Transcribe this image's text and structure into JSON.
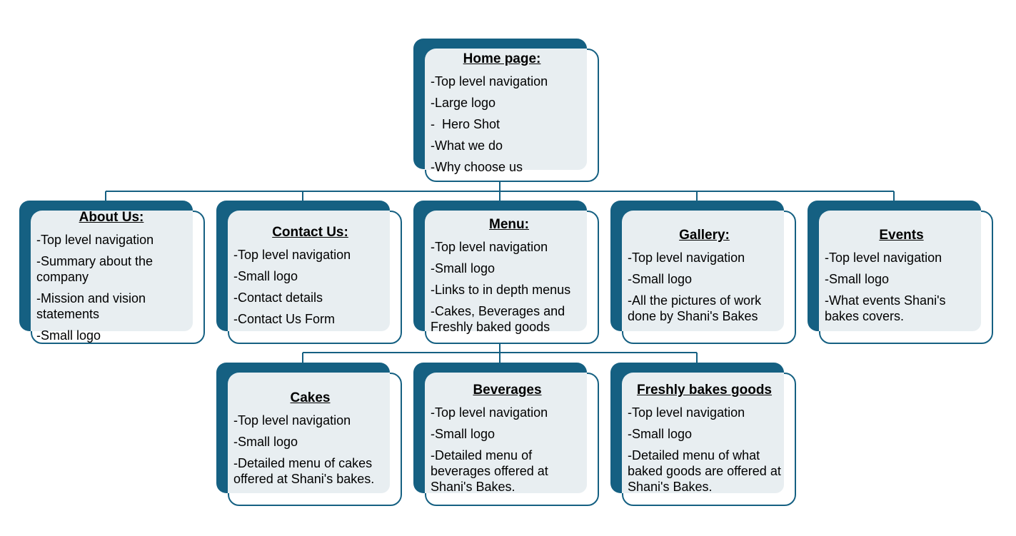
{
  "colors": {
    "primary": "#156082",
    "tint": "#e8eef1",
    "text": "#000000"
  },
  "nodes": [
    {
      "id": "home",
      "title": "Home page:",
      "items": [
        "-Top level navigation",
        "-Large logo",
        "-  Hero Shot",
        "-What we do",
        "-Why choose us"
      ]
    },
    {
      "id": "about",
      "title": "About Us:",
      "items": [
        "-Top level navigation",
        "-Summary about the company",
        "-Mission and vision statements",
        "-Small logo"
      ]
    },
    {
      "id": "contact",
      "title": "Contact Us:",
      "items": [
        "-Top level navigation",
        "-Small logo",
        "-Contact details",
        "-Contact Us Form"
      ]
    },
    {
      "id": "menu",
      "title": "Menu:",
      "items": [
        "-Top level navigation",
        "-Small logo",
        "-Links to in depth menus",
        "-Cakes, Beverages and Freshly baked goods"
      ]
    },
    {
      "id": "gallery",
      "title": "Gallery:",
      "items": [
        "-Top level navigation",
        "-Small logo",
        "-All the pictures of work done by Shani's Bakes"
      ]
    },
    {
      "id": "events",
      "title": "Events",
      "items": [
        "-Top level navigation",
        "-Small logo",
        "-What events Shani's bakes covers."
      ]
    },
    {
      "id": "cakes",
      "title": "Cakes",
      "items": [
        "-Top level navigation",
        "-Small logo",
        "-Detailed menu of cakes offered at Shani's bakes."
      ]
    },
    {
      "id": "beverages",
      "title": "Beverages",
      "items": [
        "-Top level navigation",
        "-Small logo",
        "-Detailed menu of beverages offered at Shani's Bakes."
      ]
    },
    {
      "id": "fresh",
      "title": "Freshly bakes goods",
      "items": [
        "-Top level navigation",
        "-Small logo",
        "-Detailed menu of what baked goods are offered at Shani's Bakes."
      ]
    }
  ]
}
